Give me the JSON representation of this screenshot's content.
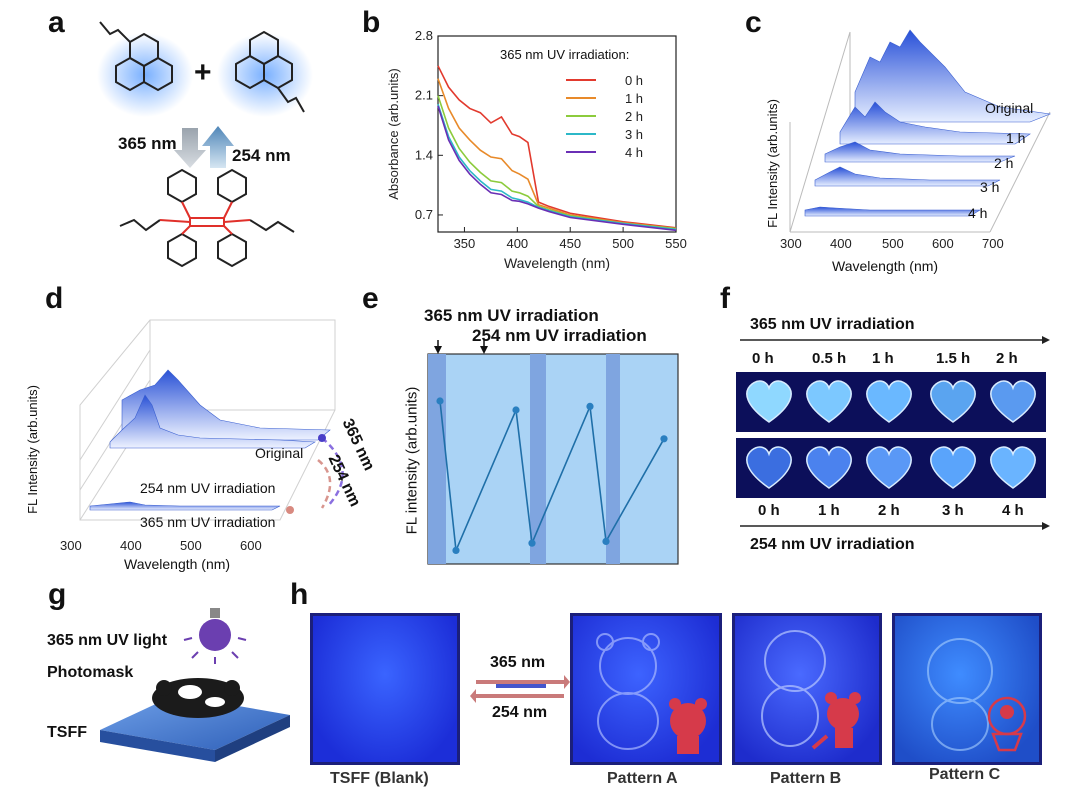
{
  "panels": {
    "a": "a",
    "b": "b",
    "c": "c",
    "d": "d",
    "e": "e",
    "f": "f",
    "g": "g",
    "h": "h"
  },
  "panel_a": {
    "label_365": "365 nm",
    "label_254": "254 nm",
    "plus": "+"
  },
  "panel_b": {
    "legend_title": "365 nm UV irradiation:",
    "xlabel": "Wavelength (nm)",
    "ylabel": "Absorbance (arb.units)"
  },
  "panel_c": {
    "xlabel": "Wavelength (nm)",
    "ylabel": "FL Intensity (arb.units)",
    "labels": [
      "Original",
      "1 h",
      "2 h",
      "3 h",
      "4 h"
    ],
    "xticks": [
      "300",
      "400",
      "500",
      "600",
      "700"
    ]
  },
  "panel_d": {
    "xlabel": "Wavelength (nm)",
    "ylabel": "FL Intensity (arb.units)",
    "labels": [
      "Original",
      "254 nm UV irradiation",
      "365 nm UV irradiation"
    ],
    "arrow_365": "365 nm",
    "arrow_254": "254 nm",
    "xticks": [
      "300",
      "400",
      "500",
      "600"
    ]
  },
  "panel_e": {
    "label_365": "365 nm UV irradiation",
    "label_254": "254 nm UV irradiation",
    "ylabel": "FL intensity (arb.units)"
  },
  "panel_f": {
    "top_title": "365 nm UV irradiation",
    "top_times": [
      "0 h",
      "0.5 h",
      "1 h",
      "1.5 h",
      "2 h"
    ],
    "bottom_times": [
      "0 h",
      "1 h",
      "2 h",
      "3 h",
      "4 h"
    ],
    "bottom_title": "254 nm UV irradiation"
  },
  "panel_g": {
    "light": "365 nm UV light",
    "mask": "Photomask",
    "film": "TSFF"
  },
  "panel_h": {
    "arrow_365": "365 nm",
    "arrow_254": "254 nm",
    "captions": [
      "TSFF (Blank)",
      "Pattern A",
      "Pattern B",
      "Pattern C"
    ]
  },
  "chart_data": [
    {
      "type": "line",
      "panel": "b",
      "xlabel": "Wavelength (nm)",
      "ylabel": "Absorbance (arb.units)",
      "legend_title": "365 nm UV irradiation:",
      "xlim": [
        325,
        550
      ],
      "ylim": [
        0.5,
        2.8
      ],
      "xticks": [
        350,
        400,
        450,
        500,
        550
      ],
      "yticks": [
        0.7,
        1.4,
        2.1,
        2.8
      ],
      "x": [
        325,
        335,
        345,
        355,
        365,
        375,
        385,
        395,
        402,
        410,
        420,
        430,
        450,
        500,
        550
      ],
      "series": [
        {
          "name": "0 h",
          "color": "#e23a2e",
          "values": [
            2.45,
            2.2,
            2.05,
            1.95,
            1.9,
            1.78,
            1.85,
            1.65,
            1.62,
            1.55,
            0.85,
            0.8,
            0.72,
            0.62,
            0.55
          ]
        },
        {
          "name": "1 h",
          "color": "#e88a2a",
          "values": [
            2.3,
            1.95,
            1.72,
            1.58,
            1.46,
            1.38,
            1.36,
            1.22,
            1.18,
            1.12,
            0.82,
            0.78,
            0.7,
            0.61,
            0.54
          ]
        },
        {
          "name": "2 h",
          "color": "#8ccb3c",
          "values": [
            2.1,
            1.72,
            1.48,
            1.32,
            1.2,
            1.1,
            1.08,
            0.98,
            0.96,
            0.92,
            0.8,
            0.76,
            0.69,
            0.6,
            0.54
          ]
        },
        {
          "name": "3 h",
          "color": "#2cb8c8",
          "values": [
            2.0,
            1.62,
            1.38,
            1.22,
            1.1,
            1.0,
            0.98,
            0.9,
            0.88,
            0.85,
            0.79,
            0.75,
            0.68,
            0.6,
            0.53
          ]
        },
        {
          "name": "4 h",
          "color": "#6a2fb5",
          "values": [
            1.98,
            1.58,
            1.34,
            1.18,
            1.06,
            0.96,
            0.94,
            0.87,
            0.86,
            0.83,
            0.78,
            0.74,
            0.67,
            0.59,
            0.52
          ]
        }
      ]
    },
    {
      "type": "line",
      "panel": "e",
      "ylabel": "FL intensity (arb.units)",
      "x": [
        1,
        2,
        3,
        4,
        5,
        6,
        7
      ],
      "values": [
        0.85,
        0.02,
        0.8,
        0.06,
        0.82,
        0.07,
        0.64
      ]
    }
  ]
}
